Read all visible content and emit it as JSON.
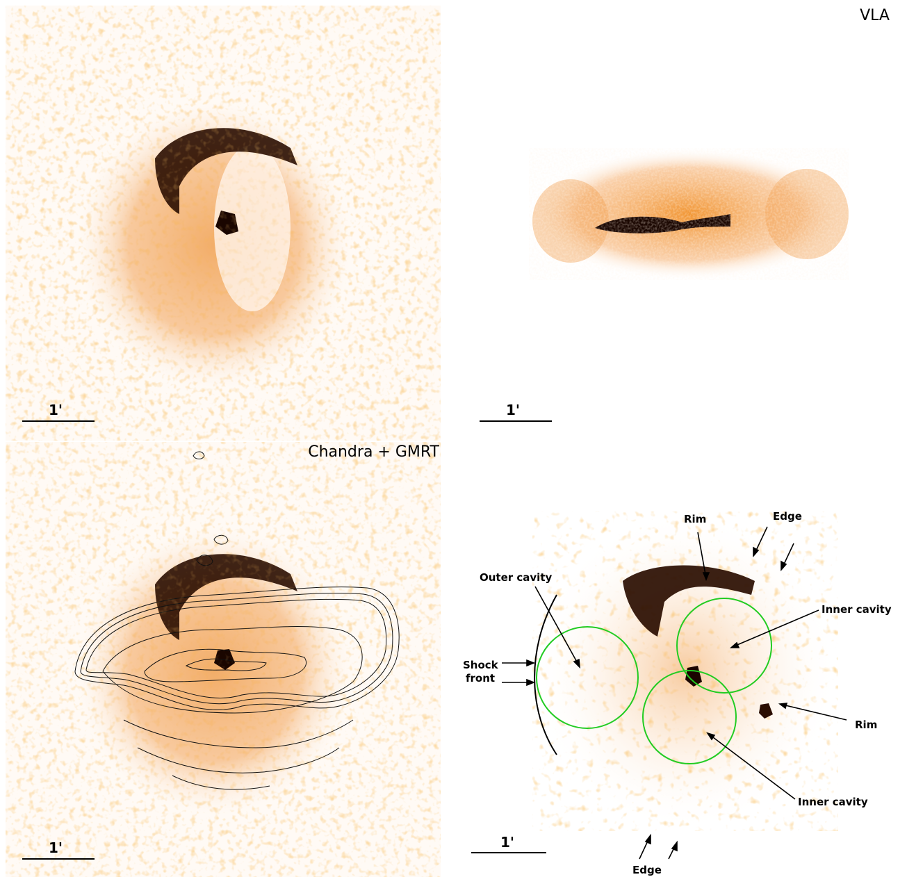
{
  "panels": {
    "top_left": {
      "scale_label": "1'"
    },
    "top_right": {
      "title": "VLA",
      "scale_label": "1'"
    },
    "bottom_left": {
      "title": "Chandra + GMRT",
      "scale_label": "1'"
    },
    "bottom_right": {
      "scale_label": "1'",
      "annotations": {
        "rim_top": "Rim",
        "edge_top": "Edge",
        "outer_cavity": "Outer cavity",
        "inner_cavity_upper": "Inner cavity",
        "shock_front_line1": "Shock",
        "shock_front_line2": "front",
        "rim_right": "Rim",
        "inner_cavity_lower": "Inner cavity",
        "edge_bottom": "Edge"
      }
    }
  },
  "colors": {
    "colormap_light": "#ffe3c4",
    "colormap_mid": "#f08a1c",
    "colormap_dark": "#2a0d00",
    "cavity_circle": "#22cc22",
    "contour": "#111111"
  }
}
